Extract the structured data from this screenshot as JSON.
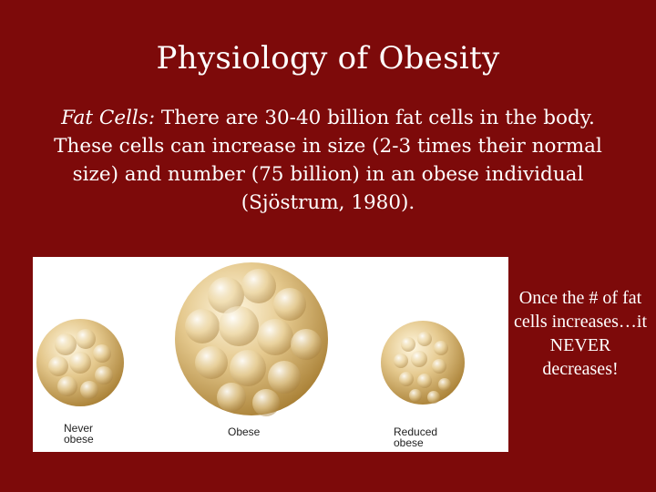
{
  "slide": {
    "title": "Physiology of Obesity",
    "body_lead": "Fat Cells:",
    "body_text": " There are 30-40 billion fat cells in the body. These cells can increase in size (2-3 times their normal size) and number (75 billion) in an obese individual (Sjöstrum, 1980).",
    "side_note": "Once the # of fat cells increases…it NEVER decreases!"
  },
  "figure": {
    "labels": {
      "never_obese": "Never\nobese",
      "obese": "Obese",
      "reduced_obese": "Reduced\nobese"
    }
  },
  "colors": {
    "background": "#7d0a0a",
    "text": "#ffffff",
    "fat_cell": "#d9b877"
  }
}
